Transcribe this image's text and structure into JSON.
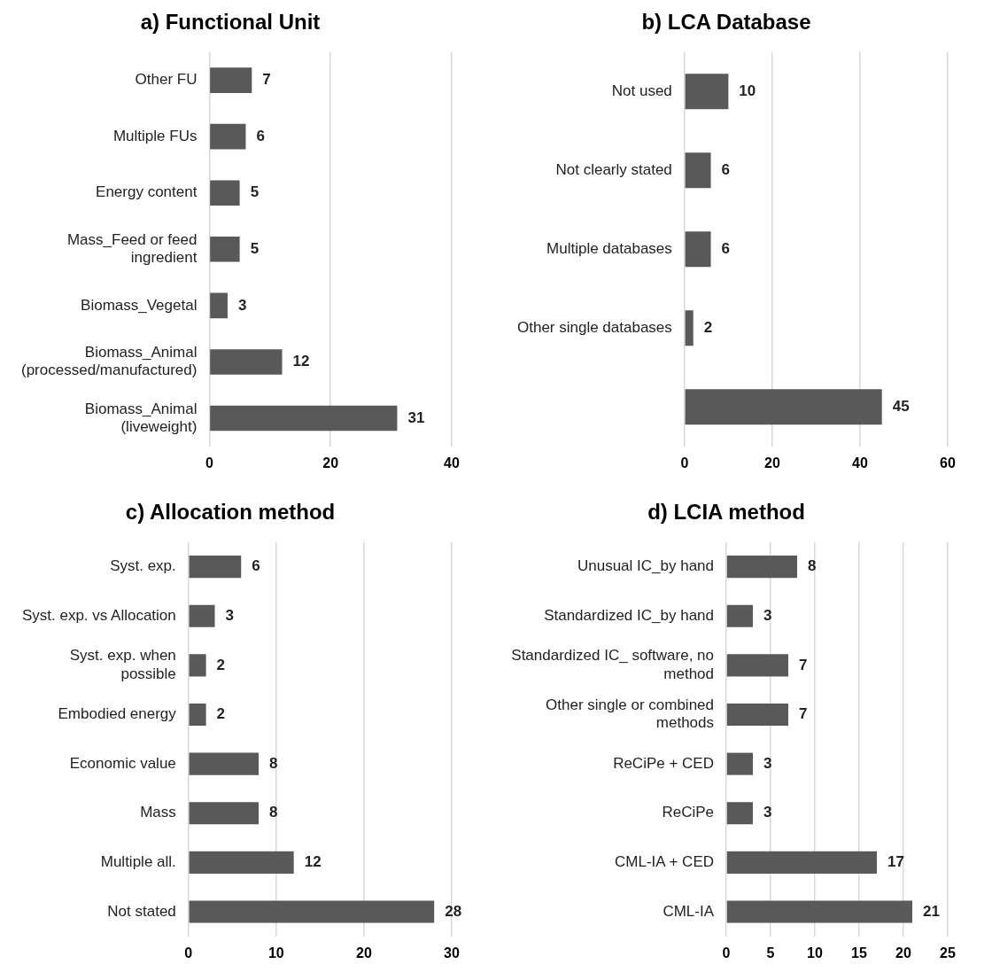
{
  "chart_data": [
    {
      "type": "bar",
      "orientation": "horizontal",
      "title": "a) Functional Unit",
      "categories": [
        "Other FU",
        "Multiple FUs",
        "Energy content",
        "Mass_Feed or feed ingredient",
        "Biomass_Vegetal",
        "Biomass_Animal (processed/manufactured)",
        "Biomass_Animal (liveweight)"
      ],
      "values": [
        7,
        6,
        5,
        5,
        3,
        12,
        31
      ],
      "color": "#595959",
      "xlim": [
        0,
        40
      ],
      "xticks": [
        0,
        20,
        40
      ],
      "grid": "x",
      "legend": false,
      "data_labels": true
    },
    {
      "type": "bar",
      "orientation": "horizontal",
      "title": "b) LCA Database",
      "categories": [
        "Not used",
        "Not clearly stated",
        "Multiple databases",
        "Other single databases",
        null
      ],
      "values": [
        10,
        6,
        6,
        2,
        45
      ],
      "color": "#595959",
      "xlim": [
        0,
        60
      ],
      "xticks": [
        0,
        20,
        40,
        60
      ],
      "grid": "x",
      "legend": false,
      "data_labels": true
    },
    {
      "type": "bar",
      "orientation": "horizontal",
      "title": "c) Allocation method",
      "categories": [
        "Syst. exp.",
        "Syst. exp. vs Allocation",
        "Syst. exp. when possible",
        "Embodied energy",
        "Economic value",
        "Mass",
        "Multiple all.",
        "Not stated"
      ],
      "values": [
        6,
        3,
        2,
        2,
        8,
        8,
        12,
        28
      ],
      "color": "#595959",
      "xlim": [
        0,
        30
      ],
      "xticks": [
        0,
        10,
        20,
        30
      ],
      "grid": "x",
      "legend": false,
      "data_labels": true
    },
    {
      "type": "bar",
      "orientation": "horizontal",
      "title": "d) LCIA method",
      "categories": [
        "Unusual IC_by hand",
        "Standardized IC_by hand",
        "Standardized IC_ software, no method",
        "Other single or combined methods",
        "ReCiPe + CED",
        "ReCiPe",
        "CML-IA + CED",
        "CML-IA"
      ],
      "values": [
        8,
        3,
        7,
        7,
        3,
        3,
        17,
        21
      ],
      "color": "#595959",
      "xlim": [
        0,
        25
      ],
      "xticks": [
        0,
        5,
        10,
        15,
        20,
        25
      ],
      "grid": "x",
      "legend": false,
      "data_labels": true
    }
  ]
}
